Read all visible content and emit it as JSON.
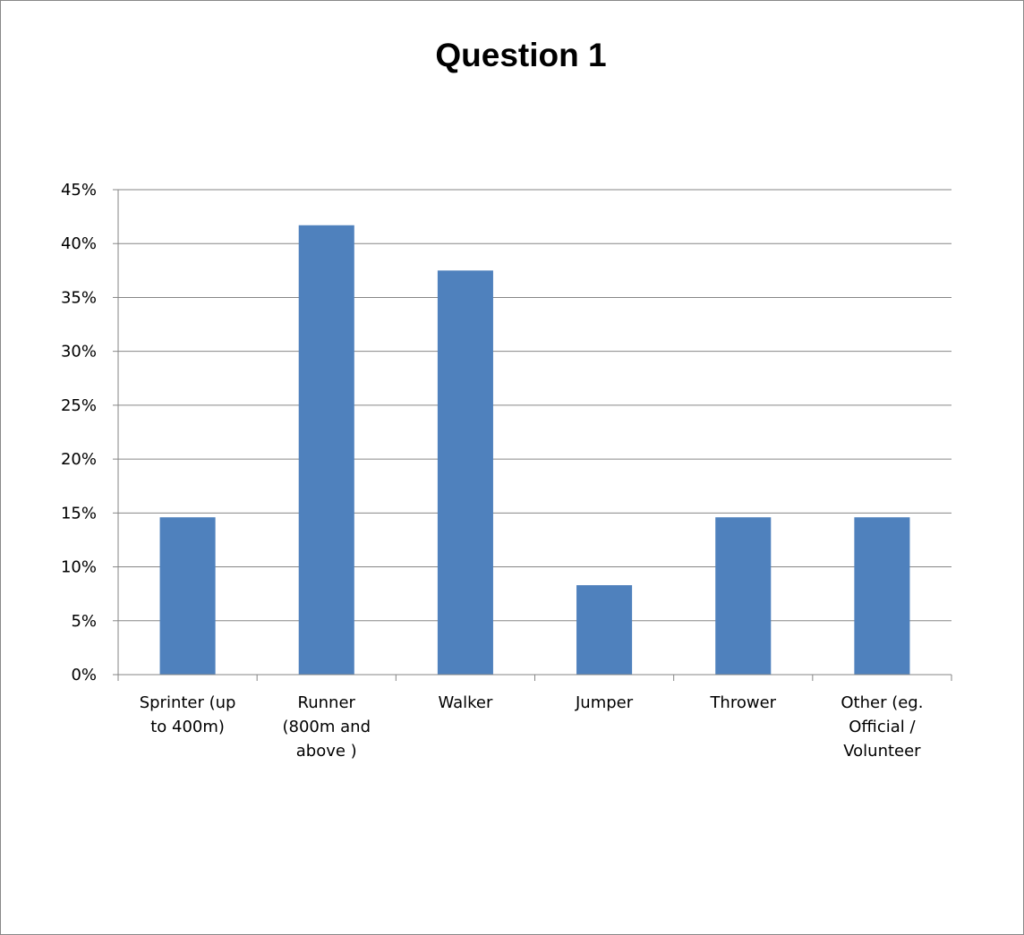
{
  "chart_data": {
    "type": "bar",
    "title": "Question 1",
    "xlabel": "",
    "ylabel": "",
    "categories": [
      [
        "Sprinter (up",
        "to 400m)"
      ],
      [
        "Runner",
        "(800m and",
        "above )"
      ],
      [
        "Walker"
      ],
      [
        "Jumper"
      ],
      [
        "Thrower"
      ],
      [
        "Other (eg.",
        "Official /",
        "Volunteer"
      ]
    ],
    "values": [
      14.6,
      41.7,
      37.5,
      8.3,
      14.6,
      14.6
    ],
    "ylim": [
      0,
      45
    ],
    "y_ticks": [
      "0%",
      "5%",
      "10%",
      "15%",
      "20%",
      "25%",
      "30%",
      "35%",
      "40%",
      "45%"
    ],
    "grid": true,
    "legend": "none",
    "bar_color": "#4F81BD",
    "grid_color": "#868686"
  }
}
